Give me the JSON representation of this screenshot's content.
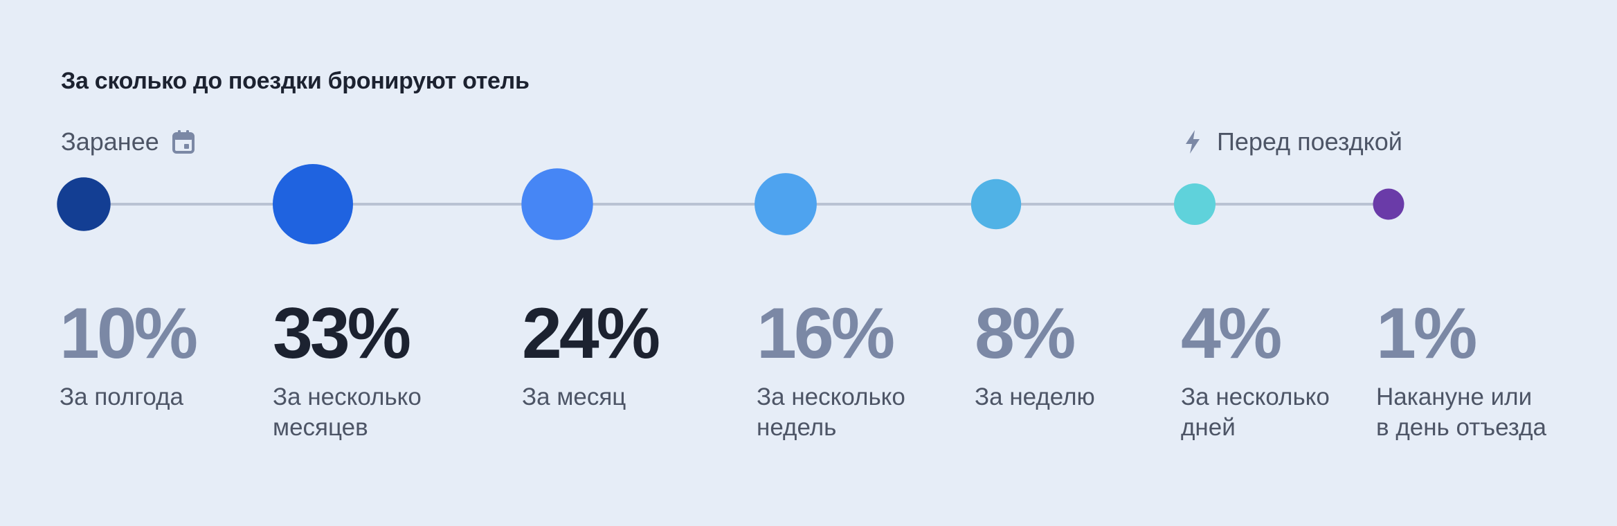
{
  "colors": {
    "background": "#e6edf7",
    "line": "#b9c2d3",
    "text_dark": "#1c2230",
    "text_muted": "#7b88a5",
    "label": "#4d5566",
    "icon": "#7b88a5"
  },
  "header": {
    "title": "За сколько до поездки бронируют отель",
    "start_label": "Заранее",
    "start_icon": "calendar-icon",
    "end_label": "Перед поездкой",
    "end_icon": "lightning-icon"
  },
  "chart_data": {
    "type": "bubble-timeline",
    "title": "За сколько до поездки бронируют отель",
    "unit": "%",
    "categories": [
      "За полгода",
      "За несколько\nмесяцев",
      "За месяц",
      "За несколько\nнедель",
      "За неделю",
      "За несколько\nдней",
      "Накануне или\nв день отъезда"
    ],
    "values": [
      10,
      33,
      24,
      16,
      8,
      4,
      1
    ],
    "value_labels": [
      "10%",
      "33%",
      "24%",
      "16%",
      "8%",
      "4%",
      "1%"
    ],
    "bubble_colors": [
      "#133e93",
      "#1f63e0",
      "#4686f5",
      "#4ea3ef",
      "#50b2e6",
      "#5fd2db",
      "#6a3ba8"
    ],
    "label_emphasis": [
      "muted",
      "dark",
      "dark",
      "muted",
      "muted",
      "muted",
      "muted"
    ]
  }
}
